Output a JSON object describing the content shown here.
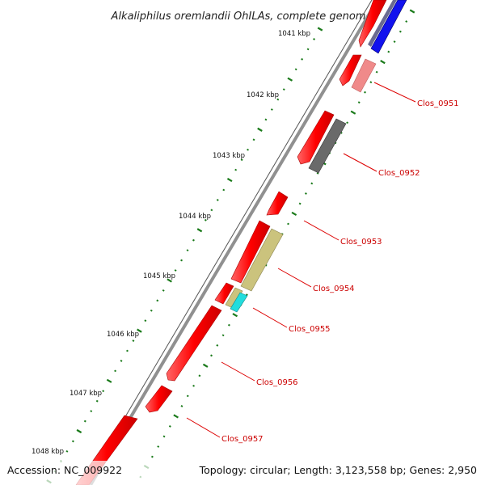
{
  "title": "Alkaliphilus oremlandii OhILAs, complete genome",
  "footer": {
    "accession": "Accession: NC_009922",
    "summary": "Topology: circular; Length: 3,123,558 bp; Genes: 2,950"
  },
  "ruler_labels": [
    "1041 kbp",
    "1042 kbp",
    "1043 kbp",
    "1044 kbp",
    "1045 kbp",
    "1046 kbp",
    "1047 kbp",
    "1048 kbp"
  ],
  "gene_labels": [
    "Clos_0951",
    "Clos_0952",
    "Clos_0953",
    "Clos_0954",
    "Clos_0955",
    "Clos_0956",
    "Clos_0957"
  ],
  "colors": {
    "cds": "#ff1111",
    "cog_blue": "#1010ee",
    "cog_pink": "#f08080",
    "cog_gray": "#666666",
    "cog_olive": "#c8c07a",
    "cog_cyan": "#22dddd",
    "tick_green": "#1a7a1a",
    "backbone": "#808080",
    "label_red": "#cc0000"
  }
}
